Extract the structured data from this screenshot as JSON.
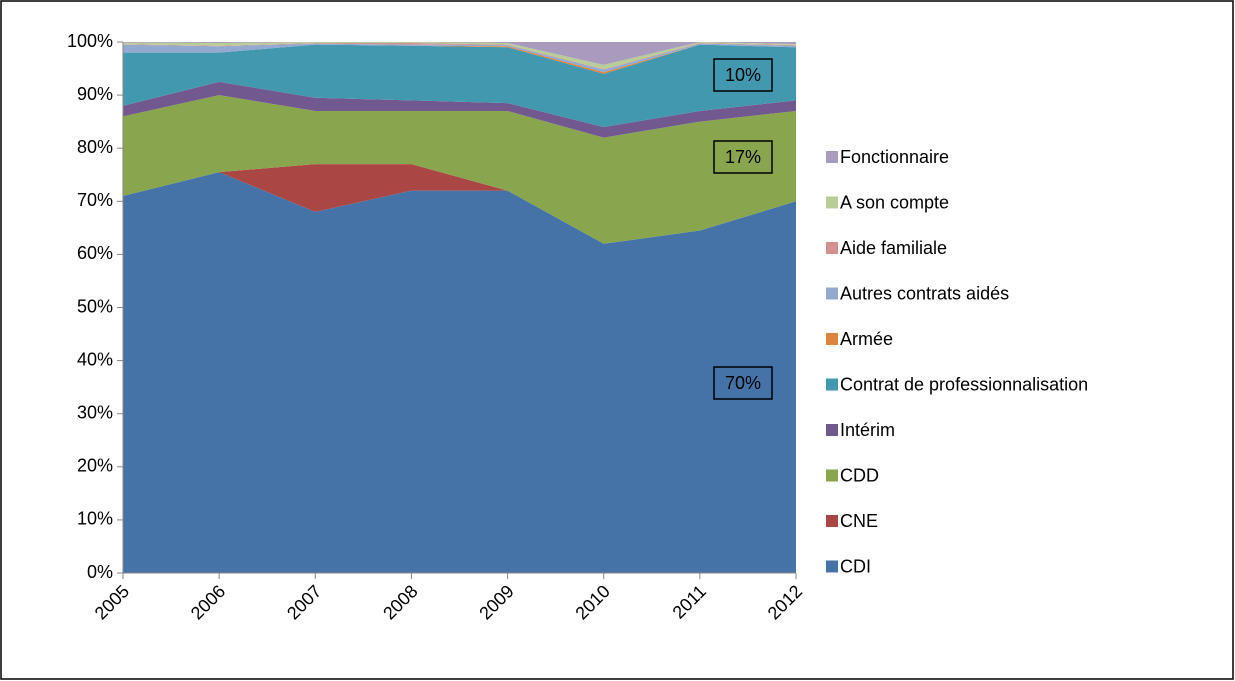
{
  "chart_data": {
    "type": "stacked-area",
    "categories": [
      "2005",
      "2006",
      "2007",
      "2008",
      "2009",
      "2010",
      "2011",
      "2012"
    ],
    "ylim": [
      0,
      100
    ],
    "yticks": [
      {
        "value": 0,
        "label": "0%"
      },
      {
        "value": 10,
        "label": "10%"
      },
      {
        "value": 20,
        "label": "20%"
      },
      {
        "value": 30,
        "label": "30%"
      },
      {
        "value": 40,
        "label": "40%"
      },
      {
        "value": 50,
        "label": "50%"
      },
      {
        "value": 60,
        "label": "60%"
      },
      {
        "value": 70,
        "label": "70%"
      },
      {
        "value": 80,
        "label": "80%"
      },
      {
        "value": 90,
        "label": "90%"
      },
      {
        "value": 100,
        "label": "100%"
      }
    ],
    "series": [
      {
        "name": "CDI",
        "color": "#4572a7",
        "values": [
          71,
          75.5,
          68,
          72,
          72,
          62,
          64.5,
          70
        ]
      },
      {
        "name": "CNE",
        "color": "#aa4643",
        "values": [
          0,
          0,
          9,
          5,
          0,
          0,
          0,
          0
        ]
      },
      {
        "name": "CDD",
        "color": "#89a54e",
        "values": [
          15,
          14.5,
          10,
          10,
          15,
          20,
          20.5,
          17
        ]
      },
      {
        "name": "Intérim",
        "color": "#71588f",
        "values": [
          2,
          2.5,
          2.5,
          2,
          1.5,
          2,
          2,
          2
        ]
      },
      {
        "name": "Contrat de professionnalisation",
        "color": "#4198af",
        "values": [
          10,
          5.5,
          10,
          10.3,
          10.5,
          10,
          12.5,
          10
        ]
      },
      {
        "name": "Armée",
        "color": "#db843d",
        "values": [
          0,
          0,
          0,
          0,
          0.2,
          0.3,
          0,
          0
        ]
      },
      {
        "name": "Autres contrats aidés",
        "color": "#93a9cf",
        "values": [
          1.5,
          1.2,
          0.2,
          0.2,
          0.2,
          0.5,
          0.2,
          0.3
        ]
      },
      {
        "name": "Aide familiale",
        "color": "#d19392",
        "values": [
          0.1,
          0.1,
          0.1,
          0.3,
          0.1,
          0.1,
          0.1,
          0.1
        ]
      },
      {
        "name": "A son compte",
        "color": "#b9cd96",
        "values": [
          0.3,
          0.5,
          0.2,
          0.2,
          0.3,
          0.8,
          0.2,
          0.2
        ]
      },
      {
        "name": "Fonctionnaire",
        "color": "#a99bbd",
        "values": [
          0.1,
          0.2,
          0,
          0,
          0.2,
          4.3,
          0,
          0.4
        ]
      }
    ],
    "annotations": [
      "10%",
      "17%",
      "70%"
    ]
  }
}
